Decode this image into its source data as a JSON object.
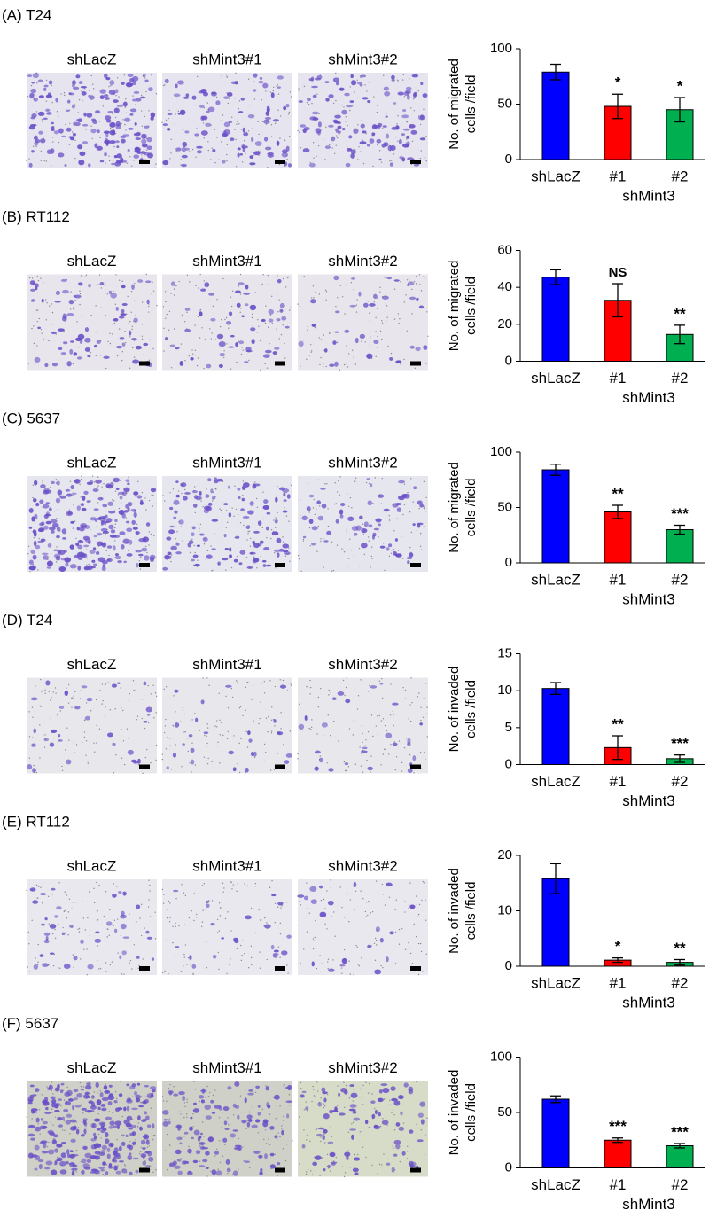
{
  "chart_data": [
    {
      "type": "bar",
      "title": "(A) T24",
      "image_labels": [
        "shLacZ",
        "shMint3#1",
        "shMint3#2"
      ],
      "categories": [
        "shLacZ",
        "#1",
        "#2"
      ],
      "xlabel": "shMint3",
      "ylabel": [
        "No. of migrated",
        "cells /field"
      ],
      "values": [
        79,
        48,
        45
      ],
      "errors": [
        7,
        11,
        11
      ],
      "colors": [
        "#0000ff",
        "#ff0000",
        "#00b050"
      ],
      "annotations": [
        null,
        "*",
        "*"
      ],
      "ylim": [
        0,
        100
      ],
      "yticks": [
        0,
        50,
        100
      ]
    },
    {
      "type": "bar",
      "title": "(B) RT112",
      "image_labels": [
        "shLacZ",
        "shMint3#1",
        "shMint3#2"
      ],
      "categories": [
        "shLacZ",
        "#1",
        "#2"
      ],
      "xlabel": "shMint3",
      "ylabel": [
        "No. of migrated",
        "cells /field"
      ],
      "values": [
        45.5,
        33,
        14.5
      ],
      "errors": [
        4,
        9,
        5
      ],
      "colors": [
        "#0000ff",
        "#ff0000",
        "#00b050"
      ],
      "annotations": [
        null,
        "NS",
        "**"
      ],
      "ylim": [
        0,
        60
      ],
      "yticks": [
        0,
        20,
        40,
        60
      ]
    },
    {
      "type": "bar",
      "title": "(C) 5637",
      "image_labels": [
        "shLacZ",
        "shMint3#1",
        "shMint3#2"
      ],
      "categories": [
        "shLacZ",
        "#1",
        "#2"
      ],
      "xlabel": "shMint3",
      "ylabel": [
        "No. of migrated",
        "cells /field"
      ],
      "values": [
        84,
        46,
        30
      ],
      "errors": [
        5,
        6,
        4
      ],
      "colors": [
        "#0000ff",
        "#ff0000",
        "#00b050"
      ],
      "annotations": [
        null,
        "**",
        "***"
      ],
      "ylim": [
        0,
        100
      ],
      "yticks": [
        0,
        50,
        100
      ]
    },
    {
      "type": "bar",
      "title": "(D) T24",
      "image_labels": [
        "shLacZ",
        "shMint3#1",
        "shMint3#2"
      ],
      "categories": [
        "shLacZ",
        "#1",
        "#2"
      ],
      "xlabel": "shMint3",
      "ylabel": [
        "No. of invaded",
        "cells /field"
      ],
      "values": [
        10.3,
        2.3,
        0.8
      ],
      "errors": [
        0.8,
        1.6,
        0.5
      ],
      "colors": [
        "#0000ff",
        "#ff0000",
        "#00b050"
      ],
      "annotations": [
        null,
        "**",
        "***"
      ],
      "ylim": [
        0,
        15
      ],
      "yticks": [
        0,
        5,
        10,
        15
      ]
    },
    {
      "type": "bar",
      "title": "(E) RT112",
      "image_labels": [
        "shLacZ",
        "shMint3#1",
        "shMint3#2"
      ],
      "categories": [
        "shLacZ",
        "#1",
        "#2"
      ],
      "xlabel": "shMint3",
      "ylabel": [
        "No. of invaded",
        "cells /field"
      ],
      "values": [
        15.8,
        1.1,
        0.7
      ],
      "errors": [
        2.7,
        0.4,
        0.5
      ],
      "colors": [
        "#0000ff",
        "#ff0000",
        "#00b050"
      ],
      "annotations": [
        null,
        "*",
        "**"
      ],
      "ylim": [
        0,
        20
      ],
      "yticks": [
        0,
        10,
        20
      ]
    },
    {
      "type": "bar",
      "title": "(F) 5637",
      "image_labels": [
        "shLacZ",
        "shMint3#1",
        "shMint3#2"
      ],
      "categories": [
        "shLacZ",
        "#1",
        "#2"
      ],
      "xlabel": "shMint3",
      "ylabel": [
        "No. of invaded",
        "cells /field"
      ],
      "values": [
        62,
        25,
        20
      ],
      "errors": [
        3,
        2,
        2
      ],
      "colors": [
        "#0000ff",
        "#ff0000",
        "#00b050"
      ],
      "annotations": [
        null,
        "***",
        "***"
      ],
      "ylim": [
        0,
        100
      ],
      "yticks": [
        0,
        50,
        100
      ]
    }
  ]
}
